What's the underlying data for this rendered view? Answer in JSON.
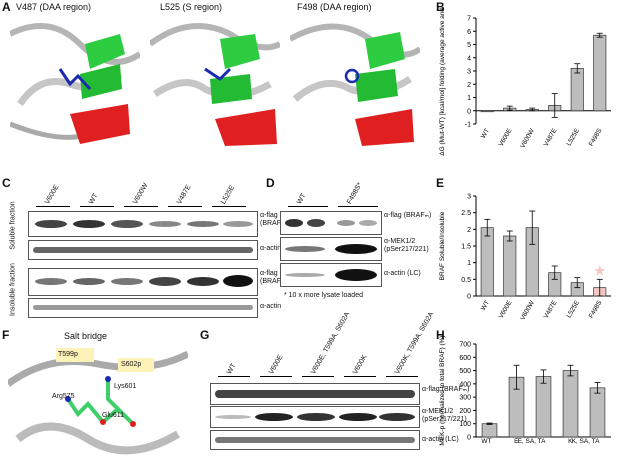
{
  "panels": {
    "A": {
      "label": "A",
      "titles": [
        "V487 (DAA region)",
        "L525 (S region)",
        "F498 (DAA region)"
      ]
    },
    "B": {
      "label": "B"
    },
    "C": {
      "label": "C",
      "lanes": [
        "V600E",
        "WT",
        "V600W",
        "V487E",
        "L525E"
      ],
      "rows": [
        "α-flag (BRAFₘ)",
        "α-actin",
        "α-flag (BRAFₘ)",
        "α-actin"
      ],
      "side": [
        "Soluble fraction",
        "Insoluble fraction"
      ]
    },
    "D": {
      "label": "D",
      "lanes": [
        "WT",
        "F498S*"
      ],
      "rows": [
        "α-flag (BRAFₘ)",
        "α-MEK1/2 (pSer217/221)",
        "α-actin (LC)"
      ],
      "note": "* 10 x more lysate loaded"
    },
    "E": {
      "label": "E"
    },
    "F": {
      "label": "F",
      "title": "Salt bridge",
      "residues": [
        "T599p",
        "S602p",
        "Lys601",
        "Arg575",
        "Glu611"
      ]
    },
    "G": {
      "label": "G",
      "lanes": [
        "WT",
        "V600E",
        "V600E, T599A, S602A",
        "V600K",
        "V600K, T599A, S602A"
      ],
      "rows": [
        "α-flag (BRAFₘ)",
        "α-MEK1/2 (pSer217/221)",
        "α-actin (LC)"
      ]
    },
    "H": {
      "label": "H"
    }
  },
  "chart_data": [
    {
      "id": "B",
      "type": "bar",
      "categories": [
        "WT",
        "V600E",
        "V600W",
        "V487E",
        "L525E",
        "F498S"
      ],
      "values": [
        0,
        0.2,
        0.1,
        0.4,
        3.2,
        5.7
      ],
      "errors": [
        0,
        0.15,
        0.1,
        0.9,
        0.35,
        0.15
      ],
      "ylabel": "ΔΔG (Mut-WT) [kcal/mol] folding (average active and inactive)",
      "ylim": [
        -1,
        7
      ],
      "yticks": [
        -1,
        0,
        1,
        2,
        3,
        4,
        5,
        6,
        7
      ],
      "color": "#bdbdbd"
    },
    {
      "id": "E",
      "type": "bar",
      "categories": [
        "WT",
        "V600E",
        "V600W",
        "V487E",
        "L525E",
        "F498S"
      ],
      "values": [
        2.05,
        1.8,
        2.05,
        0.7,
        0.4,
        0.25
      ],
      "errors": [
        0.25,
        0.15,
        0.5,
        0.2,
        0.15,
        0.25
      ],
      "ylabel": "BRAF Soluble/Insoluble",
      "ylim": [
        0,
        3
      ],
      "yticks": [
        0,
        0.5,
        1,
        1.5,
        2,
        2.5,
        3
      ],
      "color": "#bdbdbd",
      "highlight_color": "#f2c4c4",
      "star": "★"
    },
    {
      "id": "H",
      "type": "bar",
      "categories": [
        "WT",
        "E",
        "E, SA, TA",
        "K",
        "K, SA, TA"
      ],
      "values": [
        100,
        450,
        455,
        500,
        370
      ],
      "errors": [
        5,
        90,
        50,
        40,
        40
      ],
      "ylabel": "MEK-p (normalized to total BRAF) (%)",
      "ylim": [
        0,
        700
      ],
      "yticks": [
        0,
        100,
        200,
        300,
        400,
        500,
        600,
        700
      ],
      "color": "#bdbdbd"
    }
  ]
}
